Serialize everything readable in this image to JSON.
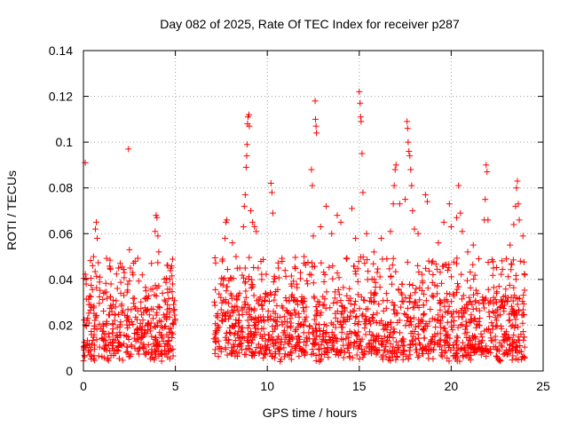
{
  "chart_data": {
    "type": "scatter",
    "title": "Day 082 of 2025, Rate Of TEC Index for receiver p287",
    "xlabel": "GPS time / hours",
    "ylabel": "ROTI / TECUs",
    "xlim": [
      0,
      25
    ],
    "ylim": [
      0,
      0.14
    ],
    "x_ticks": [
      0,
      5,
      10,
      15,
      20,
      25
    ],
    "x_tick_labels": [
      "0",
      "5",
      "10",
      "15",
      "20",
      "25"
    ],
    "y_ticks": [
      0,
      0.02,
      0.04,
      0.06,
      0.08,
      0.1,
      0.12,
      0.14
    ],
    "y_tick_labels": [
      "0",
      "0.02",
      "0.04",
      "0.06",
      "0.08",
      "0.1",
      "0.12",
      "0.14"
    ],
    "grid": true,
    "marker": "plus",
    "color": "#ff0000",
    "series": [
      {
        "points": [
          [
            0.1,
            0.091
          ],
          [
            0.15,
            0.038
          ],
          [
            0.3,
            0.029
          ],
          [
            0.5,
            0.046
          ],
          [
            0.55,
            0.05
          ],
          [
            0.65,
            0.062
          ],
          [
            0.7,
            0.065
          ],
          [
            0.75,
            0.058
          ],
          [
            0.9,
            0.041
          ],
          [
            1.1,
            0.034
          ],
          [
            1.5,
            0.038
          ],
          [
            1.9,
            0.045
          ],
          [
            2.0,
            0.047
          ],
          [
            2.2,
            0.033
          ],
          [
            2.45,
            0.097
          ],
          [
            2.5,
            0.053
          ],
          [
            2.55,
            0.045
          ],
          [
            2.8,
            0.028
          ],
          [
            3.2,
            0.042
          ],
          [
            3.4,
            0.035
          ],
          [
            3.7,
            0.047
          ],
          [
            3.9,
            0.061
          ],
          [
            3.95,
            0.068
          ],
          [
            4.0,
            0.067
          ],
          [
            4.05,
            0.059
          ],
          [
            4.1,
            0.052
          ],
          [
            4.3,
            0.034
          ],
          [
            4.7,
            0.04
          ],
          [
            4.85,
            0.038
          ],
          [
            4.9,
            0.029
          ],
          [
            7.3,
            0.025
          ],
          [
            7.6,
            0.04
          ],
          [
            7.7,
            0.058
          ],
          [
            7.75,
            0.065
          ],
          [
            7.8,
            0.066
          ],
          [
            8.1,
            0.056
          ],
          [
            8.3,
            0.05
          ],
          [
            8.5,
            0.045
          ],
          [
            8.7,
            0.063
          ],
          [
            8.75,
            0.072
          ],
          [
            8.8,
            0.077
          ],
          [
            8.85,
            0.089
          ],
          [
            8.88,
            0.094
          ],
          [
            8.9,
            0.099
          ],
          [
            8.92,
            0.108
          ],
          [
            8.95,
            0.111
          ],
          [
            9.0,
            0.112
          ],
          [
            9.02,
            0.107
          ],
          [
            9.1,
            0.07
          ],
          [
            9.2,
            0.065
          ],
          [
            9.3,
            0.063
          ],
          [
            9.4,
            0.061
          ],
          [
            9.5,
            0.045
          ],
          [
            9.7,
            0.04
          ],
          [
            9.9,
            0.034
          ],
          [
            10.2,
            0.082
          ],
          [
            10.25,
            0.078
          ],
          [
            10.3,
            0.069
          ],
          [
            10.6,
            0.045
          ],
          [
            11.0,
            0.032
          ],
          [
            11.3,
            0.038
          ],
          [
            11.8,
            0.043
          ],
          [
            12.0,
            0.05
          ],
          [
            12.4,
            0.088
          ],
          [
            12.45,
            0.081
          ],
          [
            12.5,
            0.059
          ],
          [
            12.6,
            0.118
          ],
          [
            12.62,
            0.11
          ],
          [
            12.65,
            0.107
          ],
          [
            12.67,
            0.104
          ],
          [
            12.9,
            0.063
          ],
          [
            13.2,
            0.072
          ],
          [
            13.5,
            0.06
          ],
          [
            13.8,
            0.068
          ],
          [
            14.0,
            0.065
          ],
          [
            14.3,
            0.049
          ],
          [
            14.6,
            0.071
          ],
          [
            14.8,
            0.058
          ],
          [
            15.0,
            0.122
          ],
          [
            15.05,
            0.117
          ],
          [
            15.08,
            0.111
          ],
          [
            15.1,
            0.109
          ],
          [
            15.15,
            0.095
          ],
          [
            15.2,
            0.078
          ],
          [
            15.4,
            0.06
          ],
          [
            15.8,
            0.052
          ],
          [
            16.2,
            0.058
          ],
          [
            16.5,
            0.049
          ],
          [
            16.7,
            0.061
          ],
          [
            16.85,
            0.073
          ],
          [
            16.9,
            0.081
          ],
          [
            16.95,
            0.088
          ],
          [
            17.0,
            0.09
          ],
          [
            17.2,
            0.073
          ],
          [
            17.5,
            0.075
          ],
          [
            17.6,
            0.109
          ],
          [
            17.63,
            0.106
          ],
          [
            17.66,
            0.1
          ],
          [
            17.7,
            0.096
          ],
          [
            17.75,
            0.094
          ],
          [
            17.8,
            0.088
          ],
          [
            17.85,
            0.081
          ],
          [
            17.9,
            0.07
          ],
          [
            18.0,
            0.062
          ],
          [
            18.2,
            0.06
          ],
          [
            18.6,
            0.077
          ],
          [
            18.7,
            0.074
          ],
          [
            19.0,
            0.048
          ],
          [
            19.3,
            0.056
          ],
          [
            19.6,
            0.065
          ],
          [
            19.9,
            0.073
          ],
          [
            20.0,
            0.063
          ],
          [
            20.3,
            0.067
          ],
          [
            20.4,
            0.081
          ],
          [
            20.5,
            0.069
          ],
          [
            20.6,
            0.061
          ],
          [
            20.9,
            0.052
          ],
          [
            21.2,
            0.055
          ],
          [
            21.5,
            0.049
          ],
          [
            21.8,
            0.066
          ],
          [
            21.85,
            0.075
          ],
          [
            21.9,
            0.09
          ],
          [
            21.95,
            0.087
          ],
          [
            22.0,
            0.066
          ],
          [
            22.3,
            0.045
          ],
          [
            22.6,
            0.037
          ],
          [
            23.0,
            0.049
          ],
          [
            23.2,
            0.055
          ],
          [
            23.4,
            0.064
          ],
          [
            23.5,
            0.072
          ],
          [
            23.55,
            0.08
          ],
          [
            23.6,
            0.083
          ],
          [
            23.65,
            0.073
          ],
          [
            23.7,
            0.066
          ],
          [
            23.9,
            0.059
          ],
          [
            24.0,
            0.042
          ]
        ]
      }
    ],
    "dense_band": {
      "segments": [
        [
          0.0,
          5.0
        ],
        [
          7.1,
          24.0
        ]
      ],
      "typical_low": 0.004,
      "typical_high": 0.03
    }
  }
}
